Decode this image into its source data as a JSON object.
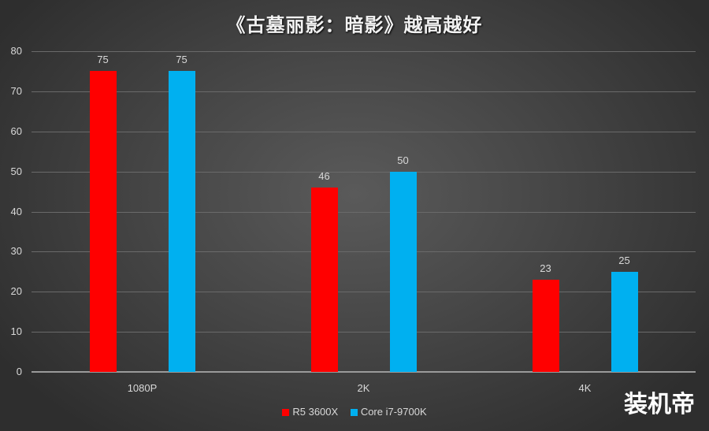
{
  "chart_data": {
    "type": "bar",
    "title": "《古墓丽影：暗影》越高越好",
    "categories": [
      "1080P",
      "2K",
      "4K"
    ],
    "series": [
      {
        "name": "R5 3600X",
        "color": "#ff0000",
        "values": [
          75,
          46,
          23
        ]
      },
      {
        "name": "Core i7-9700K",
        "color": "#00b0f0",
        "values": [
          75,
          50,
          25
        ]
      }
    ],
    "xlabel": "",
    "ylabel": "",
    "ylim": [
      0,
      80
    ],
    "yticks": [
      "0",
      "10",
      "20",
      "30",
      "40",
      "50",
      "60",
      "70",
      "80"
    ],
    "grid": true,
    "legend_position": "bottom",
    "data_labels": true
  },
  "watermark": "装机帝"
}
